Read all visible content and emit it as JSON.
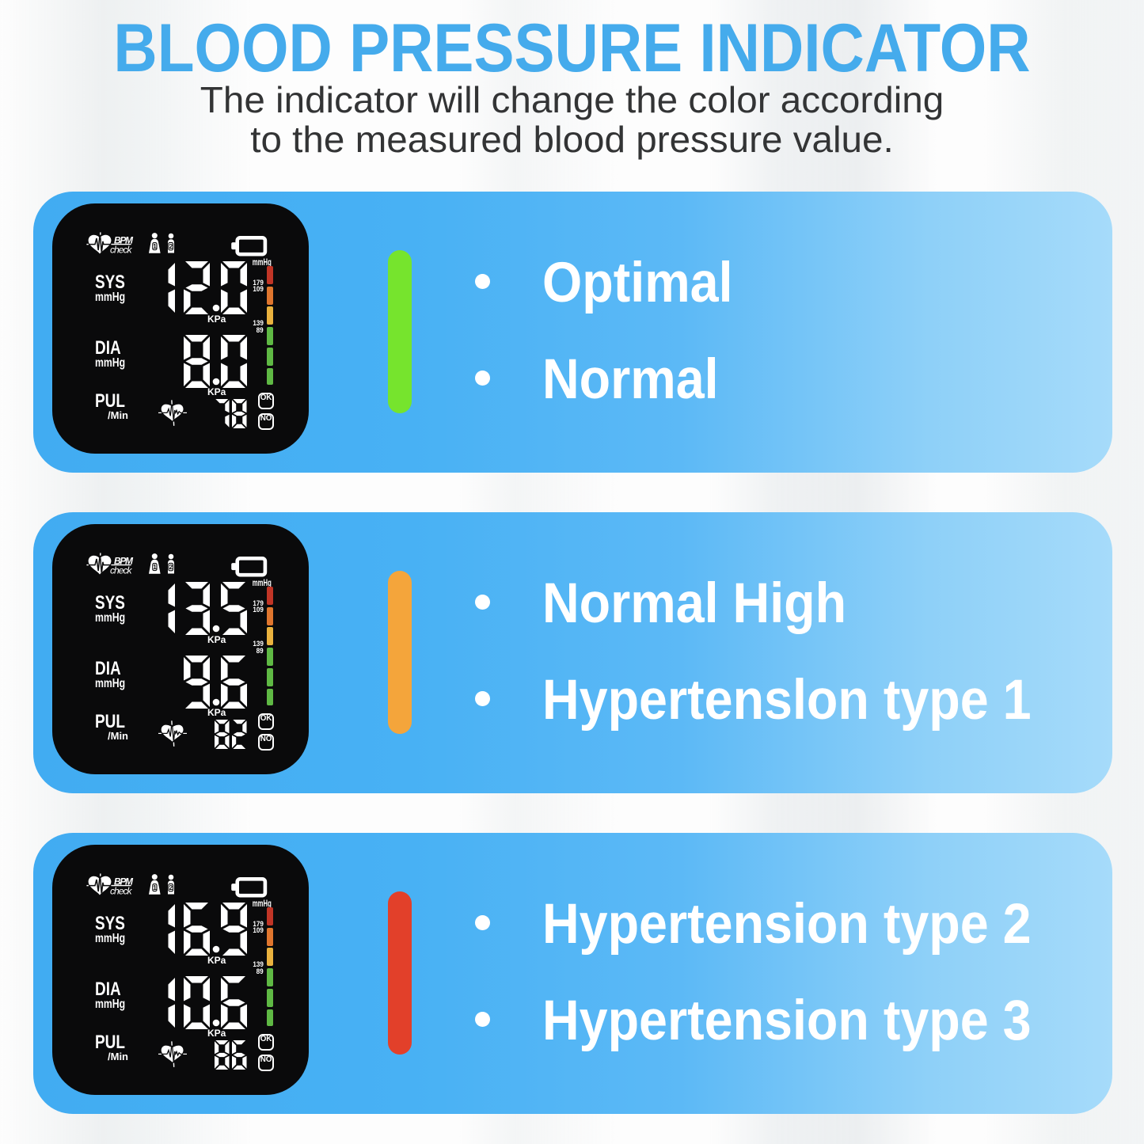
{
  "header": {
    "title": "BLOOD PRESSURE INDICATOR",
    "title_color": "#45abec",
    "subtitle_line1": "The indicator will change the color according",
    "subtitle_line2": "to the measured blood pressure value."
  },
  "lcd": {
    "brand_top": "BPM",
    "brand_bottom": "check",
    "user1_label": "1",
    "user2_label": "2",
    "scale_unit": "mmHg",
    "sys_label": "SYS",
    "sys_unit": "mmHg",
    "dia_label": "DIA",
    "dia_unit": "mmHg",
    "pul_label": "PUL",
    "pul_unit": "/Min",
    "kpa_unit": "KPa",
    "threshold_sys_high": "179",
    "threshold_dia_high": "109",
    "threshold_sys_low": "139",
    "threshold_dia_low": "89",
    "ok_label": "OK",
    "no_label": "NO",
    "scale_colors": [
      "#c13526",
      "#e0762e",
      "#eab23e",
      "#5fb944",
      "#5fb944",
      "#5fb944"
    ]
  },
  "panels": [
    {
      "readings": {
        "sys": "12.0",
        "dia": "8.0",
        "pul": "78"
      },
      "bar_color": "#76e42d",
      "bullets": [
        "Optimal",
        "Normal"
      ]
    },
    {
      "readings": {
        "sys": "13.5",
        "dia": "9.6",
        "pul": "82"
      },
      "bar_color": "#f4a53b",
      "bullets": [
        "Normal High",
        "Hypertenslon type 1"
      ]
    },
    {
      "readings": {
        "sys": "16.9",
        "dia": "10.6",
        "pul": "86"
      },
      "bar_color": "#e2402a",
      "bullets": [
        "Hypertension type 2",
        "Hypertension type 3"
      ]
    }
  ]
}
